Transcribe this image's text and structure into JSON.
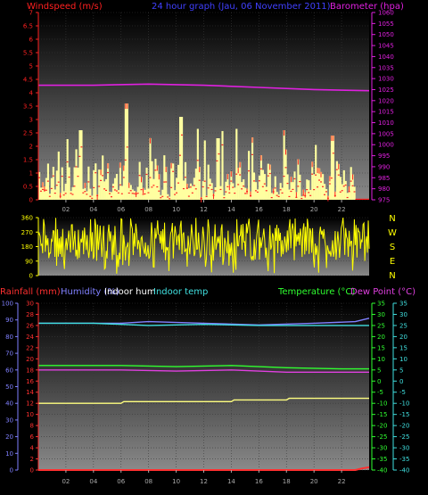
{
  "header": {
    "wind_label": "Windspeed (m/s)",
    "title": "24 hour graph (Jau, 06 November 2011)",
    "baro_label": "Barometer (hpa)"
  },
  "bottom_header": {
    "rain_label": "Rainfall (mm)",
    "humidity_label": "Humidity (%)",
    "indoor_hum_label": "Indoor hum",
    "indoor_temp_label": "Indoor temp",
    "temp_label": "Temperature (°C)",
    "dew_label": "Dew Point (°C)"
  },
  "colors": {
    "wind": "#ff2020",
    "gust_fill": "#ffffa0",
    "baro": "#e020e0",
    "winddir": "#ffff00",
    "rain": "#ff3030",
    "humidity": "#8080ff",
    "indoor_hum": "#ffffff",
    "indoor_temp": "#40e0e0",
    "temp": "#30ff30",
    "dew": "#e040e0",
    "title": "#4040ff"
  },
  "chart_data": [
    {
      "type": "bar",
      "name": "wind-chart",
      "x": [
        "02",
        "04",
        "06",
        "08",
        "10",
        "12",
        "14",
        "16",
        "18",
        "20",
        "22"
      ],
      "xlim": [
        0,
        24
      ],
      "y_left": {
        "ticks": [
          "0",
          "0.5",
          "1",
          "1.5",
          "2",
          "2.5",
          "3",
          "3.5",
          "4",
          "4.5",
          "5",
          "5.5",
          "6",
          "6.5",
          "7"
        ],
        "ylim": [
          0,
          7
        ]
      },
      "y_right": {
        "ticks": [
          "975",
          "980",
          "985",
          "990",
          "995",
          "1000",
          "1005",
          "1010",
          "1015",
          "1020",
          "1025",
          "1030",
          "1035",
          "1040",
          "1045",
          "1050",
          "1055",
          "1060"
        ],
        "ylim": [
          975,
          1060
        ]
      },
      "series": [
        {
          "name": "Windspeed (m/s)",
          "approx_peaks": [
            {
              "hour": 3.0,
              "value": 2.6
            },
            {
              "hour": 6.3,
              "value": 3.6
            },
            {
              "hour": 10.3,
              "value": 3.1
            },
            {
              "hour": 13.0,
              "value": 2.3
            },
            {
              "hour": 21.3,
              "value": 2.4
            }
          ]
        },
        {
          "name": "Barometer (hpa)",
          "points": [
            [
              0,
              1027
            ],
            [
              4,
              1027
            ],
            [
              8,
              1027.5
            ],
            [
              12,
              1027
            ],
            [
              16,
              1026
            ],
            [
              20,
              1025
            ],
            [
              24,
              1024.5
            ]
          ]
        }
      ]
    },
    {
      "type": "line",
      "name": "wind-direction-chart",
      "xlim": [
        0,
        24
      ],
      "y_left": {
        "ticks": [
          "0",
          "90",
          "180",
          "270",
          "360"
        ],
        "ylim": [
          0,
          360
        ]
      },
      "y_right_compass": [
        "N",
        "W",
        "S",
        "E",
        "N"
      ],
      "series": [
        {
          "name": "Wind direction",
          "band": [
            90,
            330
          ]
        }
      ]
    },
    {
      "type": "line",
      "name": "weather-chart",
      "x": [
        "02",
        "04",
        "06",
        "08",
        "10",
        "12",
        "14",
        "16",
        "18",
        "20",
        "22"
      ],
      "xlim": [
        0,
        24
      ],
      "y_rain": {
        "ticks": [
          "0",
          "2",
          "4",
          "6",
          "8",
          "10",
          "12",
          "14",
          "16",
          "18",
          "20",
          "22",
          "24",
          "26",
          "28",
          "30"
        ],
        "ylim": [
          0,
          30
        ]
      },
      "y_hum": {
        "ticks": [
          "0",
          "10",
          "20",
          "30",
          "40",
          "50",
          "60",
          "70",
          "80",
          "90",
          "100"
        ],
        "ylim": [
          0,
          100
        ]
      },
      "y_temp": {
        "ticks": [
          "-40",
          "-35",
          "-30",
          "-25",
          "-20",
          "-15",
          "-10",
          "-5",
          "0",
          "5",
          "10",
          "15",
          "20",
          "25",
          "30",
          "35"
        ],
        "ylim": [
          -40,
          35
        ]
      },
      "series": [
        {
          "name": "Humidity (%)",
          "points": [
            [
              0,
              88
            ],
            [
              6,
              88
            ],
            [
              8,
              89
            ],
            [
              12,
              88
            ],
            [
              16,
              87
            ],
            [
              20,
              88
            ],
            [
              23,
              89
            ],
            [
              24,
              91
            ]
          ]
        },
        {
          "name": "Indoor temp",
          "points": [
            [
              0,
              26
            ],
            [
              4,
              26
            ],
            [
              8,
              25
            ],
            [
              12,
              25.5
            ],
            [
              16,
              25
            ],
            [
              20,
              25
            ],
            [
              24,
              25
            ]
          ]
        },
        {
          "name": "Temperature (°C)",
          "points": [
            [
              0,
              7
            ],
            [
              6,
              7
            ],
            [
              10,
              6.5
            ],
            [
              14,
              7
            ],
            [
              18,
              6
            ],
            [
              22,
              5.5
            ],
            [
              24,
              5.5
            ]
          ]
        },
        {
          "name": "Dew Point (°C)",
          "points": [
            [
              0,
              5
            ],
            [
              6,
              5
            ],
            [
              10,
              4.5
            ],
            [
              14,
              5
            ],
            [
              18,
              4
            ],
            [
              22,
              4
            ],
            [
              24,
              4
            ]
          ]
        },
        {
          "name": "Indoor hum",
          "points": [
            [
              0,
              40
            ],
            [
              6,
              40
            ],
            [
              6.2,
              41
            ],
            [
              14,
              41
            ],
            [
              14.2,
              42
            ],
            [
              18,
              42
            ],
            [
              18.2,
              43
            ],
            [
              24,
              43
            ]
          ]
        },
        {
          "name": "Rainfall (mm)",
          "points": [
            [
              0,
              0
            ],
            [
              23,
              0
            ],
            [
              23.5,
              0.3
            ],
            [
              24,
              0.5
            ]
          ]
        }
      ]
    }
  ]
}
